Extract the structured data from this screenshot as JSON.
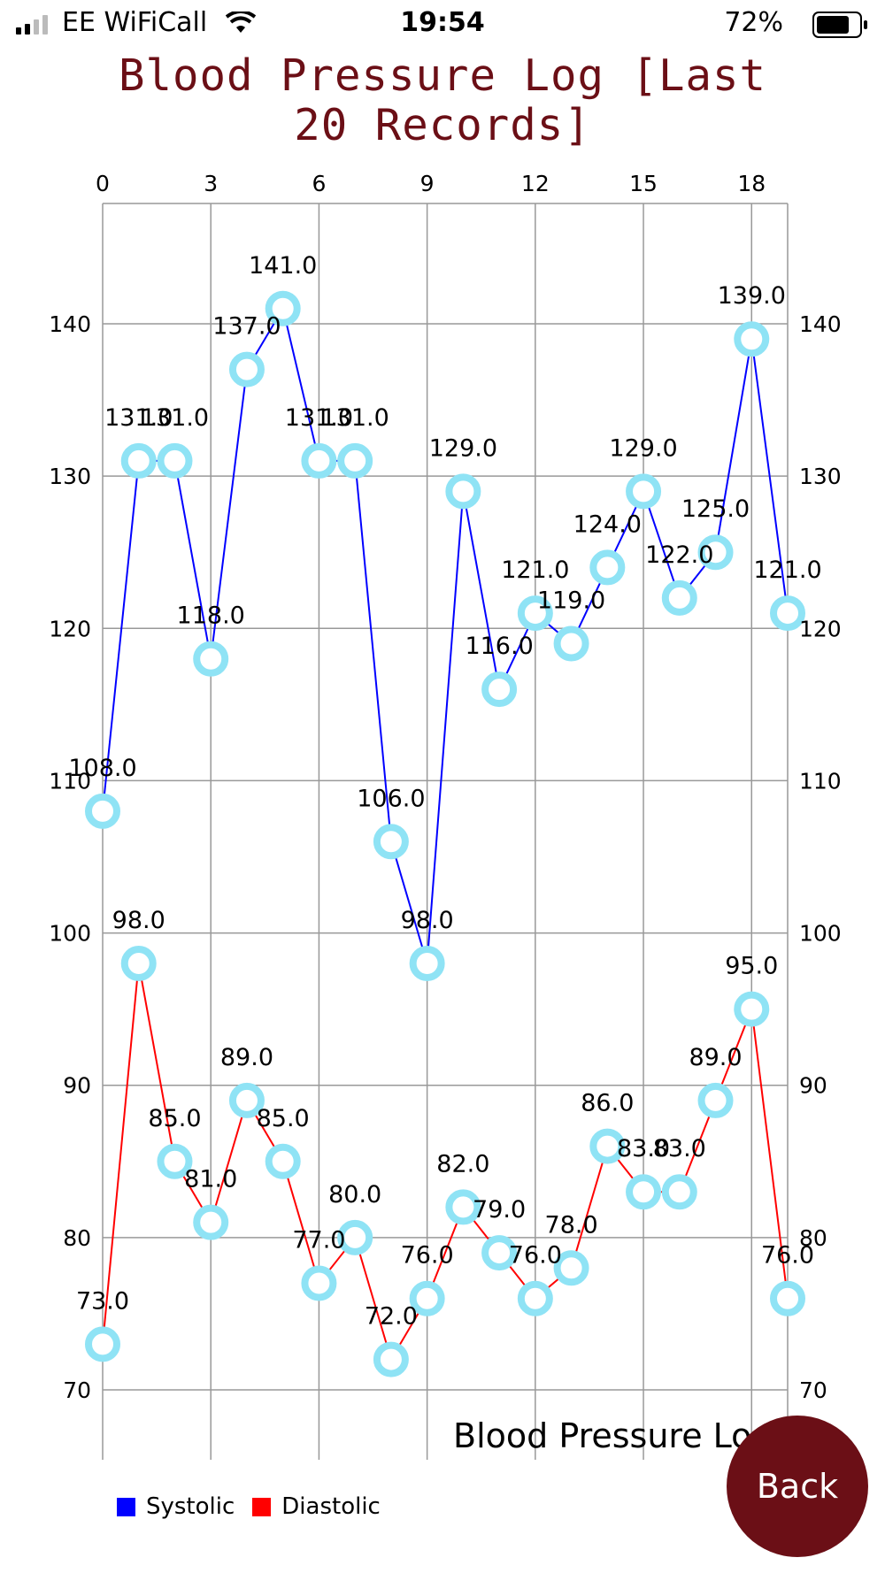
{
  "status_bar": {
    "carrier": "EE WiFiCall",
    "time": "19:54",
    "battery_percent": "72%",
    "icons": [
      "signal-bars-icon",
      "wifi-icon",
      "battery-icon"
    ]
  },
  "title": "Blood Pressure Log [Last 20 Records]",
  "chart_data": {
    "type": "line",
    "title": "Blood Pressure Log",
    "x": [
      0,
      1,
      2,
      3,
      4,
      5,
      6,
      7,
      8,
      9,
      10,
      11,
      12,
      13,
      14,
      15,
      16,
      17,
      18,
      19
    ],
    "x_ticks": [
      0,
      3,
      6,
      9,
      12,
      15,
      18
    ],
    "y_ticks": [
      70,
      80,
      90,
      100,
      110,
      120,
      130,
      140
    ],
    "xlim": [
      0,
      19
    ],
    "ylim": [
      65,
      146
    ],
    "grid": true,
    "legend_position": "bottom-left",
    "series": [
      {
        "name": "Systolic",
        "color": "#0000ff",
        "values": [
          108,
          131,
          131,
          118,
          137,
          141,
          131,
          131,
          106,
          98,
          129,
          116,
          121,
          119,
          124,
          129,
          122,
          125,
          139,
          121
        ]
      },
      {
        "name": "Diastolic",
        "color": "#ff0000",
        "values": [
          73,
          98,
          85,
          81,
          89,
          85,
          77,
          80,
          72,
          76,
          82,
          79,
          76,
          78,
          86,
          83,
          83,
          89,
          95,
          76
        ]
      }
    ],
    "marker_color": "#8fe3f5"
  },
  "back_button": {
    "label": "Back",
    "color": "#6b0f16"
  }
}
